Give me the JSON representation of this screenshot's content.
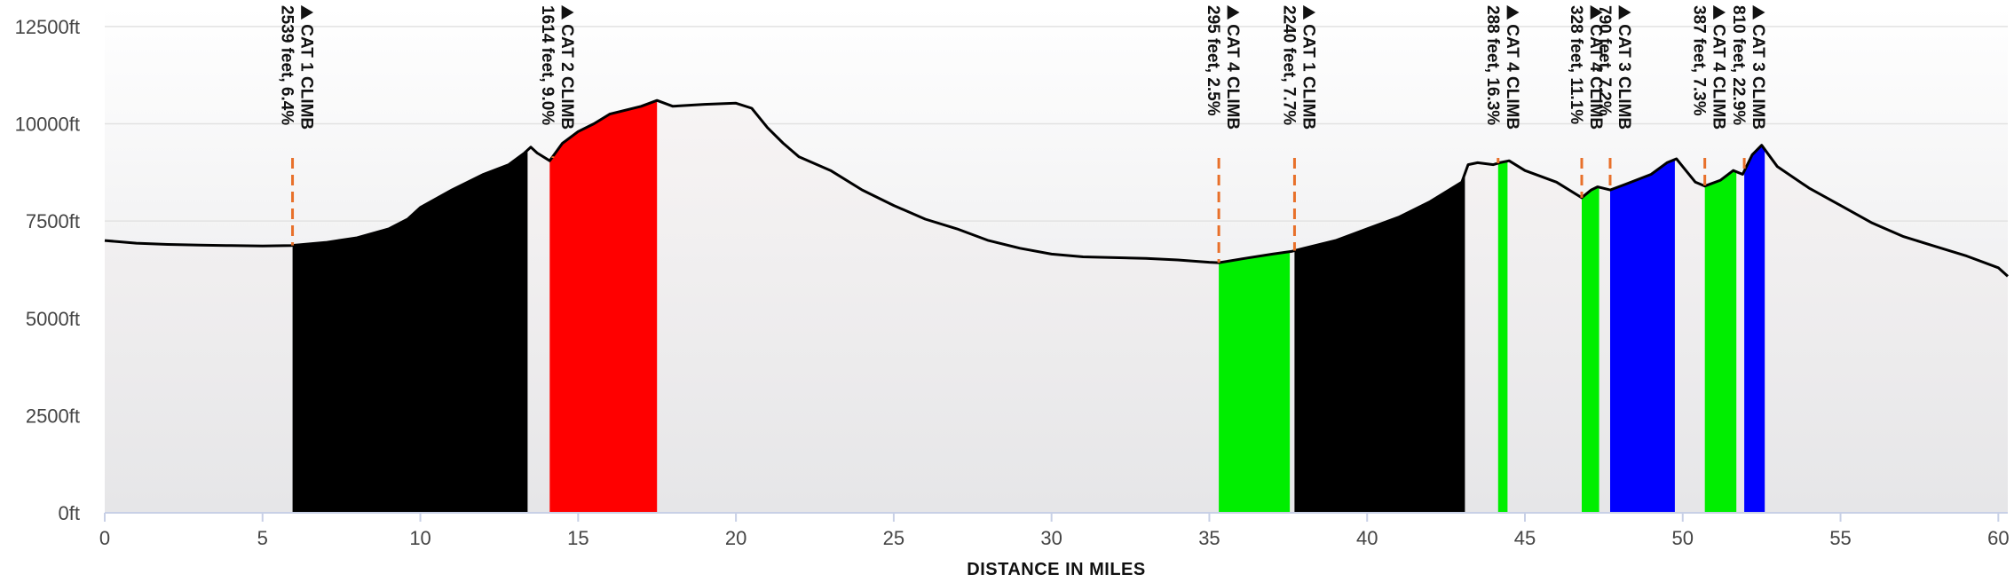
{
  "chart_data": {
    "type": "area",
    "xlabel": "DISTANCE IN MILES",
    "ylabel": "",
    "xlim": [
      0,
      60.3
    ],
    "ylim": [
      0,
      13000
    ],
    "x_ticks": [
      0,
      5,
      10,
      15,
      20,
      25,
      30,
      35,
      40,
      45,
      50,
      55,
      60
    ],
    "y_ticks": [
      {
        "value": 0,
        "label": "0ft"
      },
      {
        "value": 2500,
        "label": "2500ft"
      },
      {
        "value": 5000,
        "label": "5000ft"
      },
      {
        "value": 7500,
        "label": "7500ft"
      },
      {
        "value": 10000,
        "label": "10000ft"
      },
      {
        "value": 12500,
        "label": "12500ft"
      }
    ],
    "grid": true,
    "colors": {
      "profile_fill": "#f3f1f1",
      "profile_line": "#000000",
      "marker": "#e8702a",
      "cat1": "#000000",
      "cat2": "#ff0000",
      "cat3": "#0000ff",
      "cat4": "#00ee00"
    },
    "elevation_profile": [
      [
        0,
        7000
      ],
      [
        1,
        6930
      ],
      [
        2,
        6900
      ],
      [
        3,
        6880
      ],
      [
        4,
        6870
      ],
      [
        5,
        6860
      ],
      [
        5.9,
        6870
      ],
      [
        7,
        6950
      ],
      [
        8,
        7070
      ],
      [
        9,
        7300
      ],
      [
        9.6,
        7550
      ],
      [
        10,
        7850
      ],
      [
        11,
        8300
      ],
      [
        12,
        8700
      ],
      [
        12.8,
        8950
      ],
      [
        13.3,
        9250
      ],
      [
        13.5,
        9400
      ],
      [
        13.7,
        9250
      ],
      [
        14.1,
        9050
      ],
      [
        14.5,
        9500
      ],
      [
        15,
        9800
      ],
      [
        15.5,
        10000
      ],
      [
        16,
        10250
      ],
      [
        17,
        10450
      ],
      [
        17.5,
        10600
      ],
      [
        18,
        10450
      ],
      [
        19,
        10500
      ],
      [
        20,
        10530
      ],
      [
        20.5,
        10400
      ],
      [
        21,
        9900
      ],
      [
        21.5,
        9500
      ],
      [
        22,
        9150
      ],
      [
        23,
        8800
      ],
      [
        24,
        8300
      ],
      [
        25,
        7900
      ],
      [
        26,
        7550
      ],
      [
        27,
        7300
      ],
      [
        28,
        7000
      ],
      [
        29,
        6800
      ],
      [
        30,
        6650
      ],
      [
        31,
        6580
      ],
      [
        32,
        6560
      ],
      [
        33,
        6540
      ],
      [
        34,
        6500
      ],
      [
        35,
        6440
      ],
      [
        35.3,
        6430
      ],
      [
        36.2,
        6550
      ],
      [
        37,
        6650
      ],
      [
        37.6,
        6720
      ],
      [
        38,
        6800
      ],
      [
        39,
        7000
      ],
      [
        40,
        7300
      ],
      [
        41,
        7600
      ],
      [
        42,
        8000
      ],
      [
        43,
        8500
      ],
      [
        43.2,
        8950
      ],
      [
        43.5,
        9000
      ],
      [
        44,
        8950
      ],
      [
        44.2,
        9000
      ],
      [
        44.5,
        9050
      ],
      [
        45,
        8800
      ],
      [
        46,
        8500
      ],
      [
        46.8,
        8100
      ],
      [
        47.1,
        8300
      ],
      [
        47.3,
        8380
      ],
      [
        47.7,
        8300
      ],
      [
        48.2,
        8450
      ],
      [
        49,
        8700
      ],
      [
        49.5,
        9000
      ],
      [
        49.8,
        9100
      ],
      [
        50,
        8900
      ],
      [
        50.4,
        8500
      ],
      [
        50.7,
        8400
      ],
      [
        51.2,
        8550
      ],
      [
        51.6,
        8800
      ],
      [
        51.9,
        8700
      ],
      [
        52.2,
        9200
      ],
      [
        52.5,
        9450
      ],
      [
        53,
        8900
      ],
      [
        54,
        8350
      ],
      [
        55,
        7900
      ],
      [
        56,
        7450
      ],
      [
        57,
        7100
      ],
      [
        58,
        6850
      ],
      [
        59,
        6600
      ],
      [
        60,
        6300
      ],
      [
        60.3,
        6080
      ]
    ],
    "climbs": [
      {
        "start": 5.95,
        "end": 13.4,
        "category": "cat1"
      },
      {
        "start": 14.1,
        "end": 17.5,
        "category": "cat2"
      },
      {
        "start": 35.3,
        "end": 37.55,
        "category": "cat4"
      },
      {
        "start": 37.7,
        "end": 43.1,
        "category": "cat1"
      },
      {
        "start": 44.15,
        "end": 44.45,
        "category": "cat4"
      },
      {
        "start": 46.8,
        "end": 47.35,
        "category": "cat4"
      },
      {
        "start": 47.7,
        "end": 49.75,
        "category": "cat3"
      },
      {
        "start": 50.7,
        "end": 51.7,
        "category": "cat4"
      },
      {
        "start": 51.95,
        "end": 52.6,
        "category": "cat3"
      }
    ],
    "annotations": [
      {
        "x": 5.95,
        "lines": [
          "⛰ CAT 1 CLIMB",
          "2539 feet, 6.4%"
        ]
      },
      {
        "x": 14.2,
        "lines": [
          "⛰ CAT 2 CLIMB",
          "1614 feet, 9.0%"
        ]
      },
      {
        "x": 35.3,
        "lines": [
          "⛰ CAT 4 CLIMB",
          "295 feet, 2.5%"
        ]
      },
      {
        "x": 37.7,
        "lines": [
          "⛰ CAT 1 CLIMB",
          "2240 feet, 7.7%"
        ]
      },
      {
        "x": 44.15,
        "lines": [
          "⛰ CAT 4 CLIMB",
          "288 feet, 16.3%"
        ]
      },
      {
        "x": 46.8,
        "lines": [
          "⛰ CAT 4 CLIMB",
          "328 feet, 11.1%"
        ]
      },
      {
        "x": 47.7,
        "lines": [
          "⛰ CAT 3 CLIMB",
          "790 feet, 7.2%"
        ]
      },
      {
        "x": 50.7,
        "lines": [
          "⛰ CAT 4 CLIMB",
          "387 feet, 7.3%"
        ]
      },
      {
        "x": 51.95,
        "lines": [
          "⛰ CAT 3 CLIMB",
          "810 feet, 22.9%"
        ]
      }
    ]
  }
}
